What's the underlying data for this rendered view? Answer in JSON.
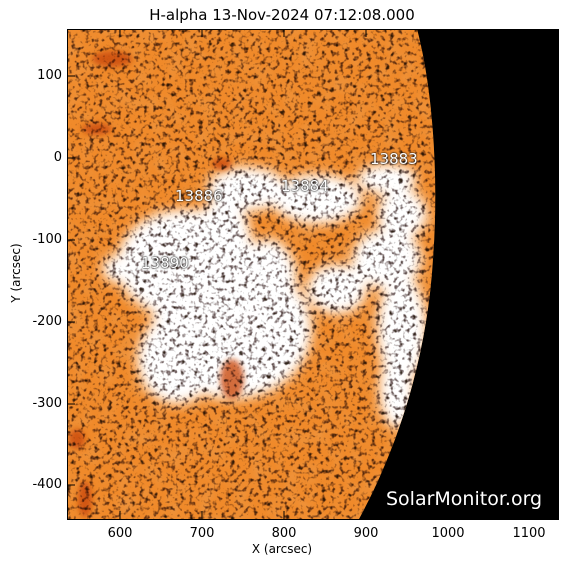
{
  "title": "H-alpha 13-Nov-2024 07:12:08.000",
  "axes": {
    "xlabel": "X (arcsec)",
    "ylabel": "Y (arcsec)",
    "xticks": [
      "600",
      "700",
      "800",
      "900",
      "1000",
      "1100"
    ],
    "yticks": [
      "100",
      "0",
      "-100",
      "-200",
      "-300",
      "-400"
    ]
  },
  "active_regions": [
    {
      "label": "13883"
    },
    {
      "label": "13884"
    },
    {
      "label": "13886"
    },
    {
      "label": "13890"
    }
  ],
  "watermark": "SolarMonitor.org",
  "colors": {
    "solar_base": "#f08a2a",
    "solar_dark": "#c94a0a",
    "plage": "#ffffff",
    "space": "#000000"
  }
}
